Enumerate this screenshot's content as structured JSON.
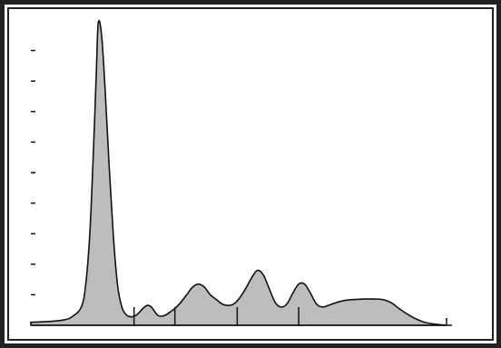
{
  "chart_data": {
    "type": "area",
    "title": "",
    "xlabel": "",
    "ylabel": "",
    "grid": false,
    "legend": "none",
    "ylim": [
      0,
      10
    ],
    "xlim": [
      0,
      100
    ],
    "y_ticks": [
      1,
      2,
      3,
      4,
      5,
      6,
      7,
      8,
      9
    ],
    "x_dividers": [
      24.5,
      34.2,
      49.0,
      63.6,
      98.7
    ],
    "x": [
      0,
      4,
      8,
      10,
      12,
      13,
      14,
      14.8,
      15.5,
      16,
      16.8,
      17.6,
      18.6,
      19.6,
      20.6,
      21.6,
      22.6,
      23.6,
      24.6,
      25.6,
      26.6,
      27.6,
      28.6,
      29.4,
      30.2,
      31.2,
      32.2,
      33.2,
      34.2,
      35.6,
      37,
      38.4,
      39.8,
      41.2,
      42.6,
      44,
      45.4,
      46.8,
      48.2,
      49.6,
      51,
      52.4,
      53.8,
      55.2,
      56.6,
      58,
      59.4,
      60.8,
      62.2,
      63.6,
      65,
      66.4,
      67.8,
      69.2,
      70.6,
      72,
      73.4,
      74.8,
      76.2,
      77.6,
      79,
      80.4,
      81.8,
      83.2,
      84.6,
      86,
      87.4,
      88.8,
      90.2,
      91.6,
      93,
      94.4,
      95.8,
      97.2,
      98.7
    ],
    "series": [
      {
        "values": [
          0.1,
          0.12,
          0.18,
          0.3,
          0.6,
          1.3,
          3.0,
          5.5,
          8.1,
          9.9,
          9.5,
          7.8,
          5.2,
          2.9,
          1.3,
          0.6,
          0.35,
          0.28,
          0.3,
          0.4,
          0.55,
          0.65,
          0.6,
          0.45,
          0.32,
          0.3,
          0.35,
          0.45,
          0.55,
          0.75,
          1.0,
          1.25,
          1.35,
          1.25,
          1.0,
          0.85,
          0.7,
          0.65,
          0.7,
          0.9,
          1.2,
          1.55,
          1.8,
          1.65,
          1.2,
          0.75,
          0.6,
          0.7,
          1.05,
          1.35,
          1.35,
          1.05,
          0.7,
          0.6,
          0.65,
          0.72,
          0.78,
          0.82,
          0.84,
          0.85,
          0.86,
          0.86,
          0.86,
          0.85,
          0.8,
          0.7,
          0.55,
          0.42,
          0.3,
          0.2,
          0.12,
          0.07,
          0.04,
          0.02,
          0.0
        ]
      }
    ],
    "colors": {
      "fill": "#bdbdc0",
      "stroke": "#111111",
      "frame": "#222222",
      "background": "#ffffff"
    }
  }
}
